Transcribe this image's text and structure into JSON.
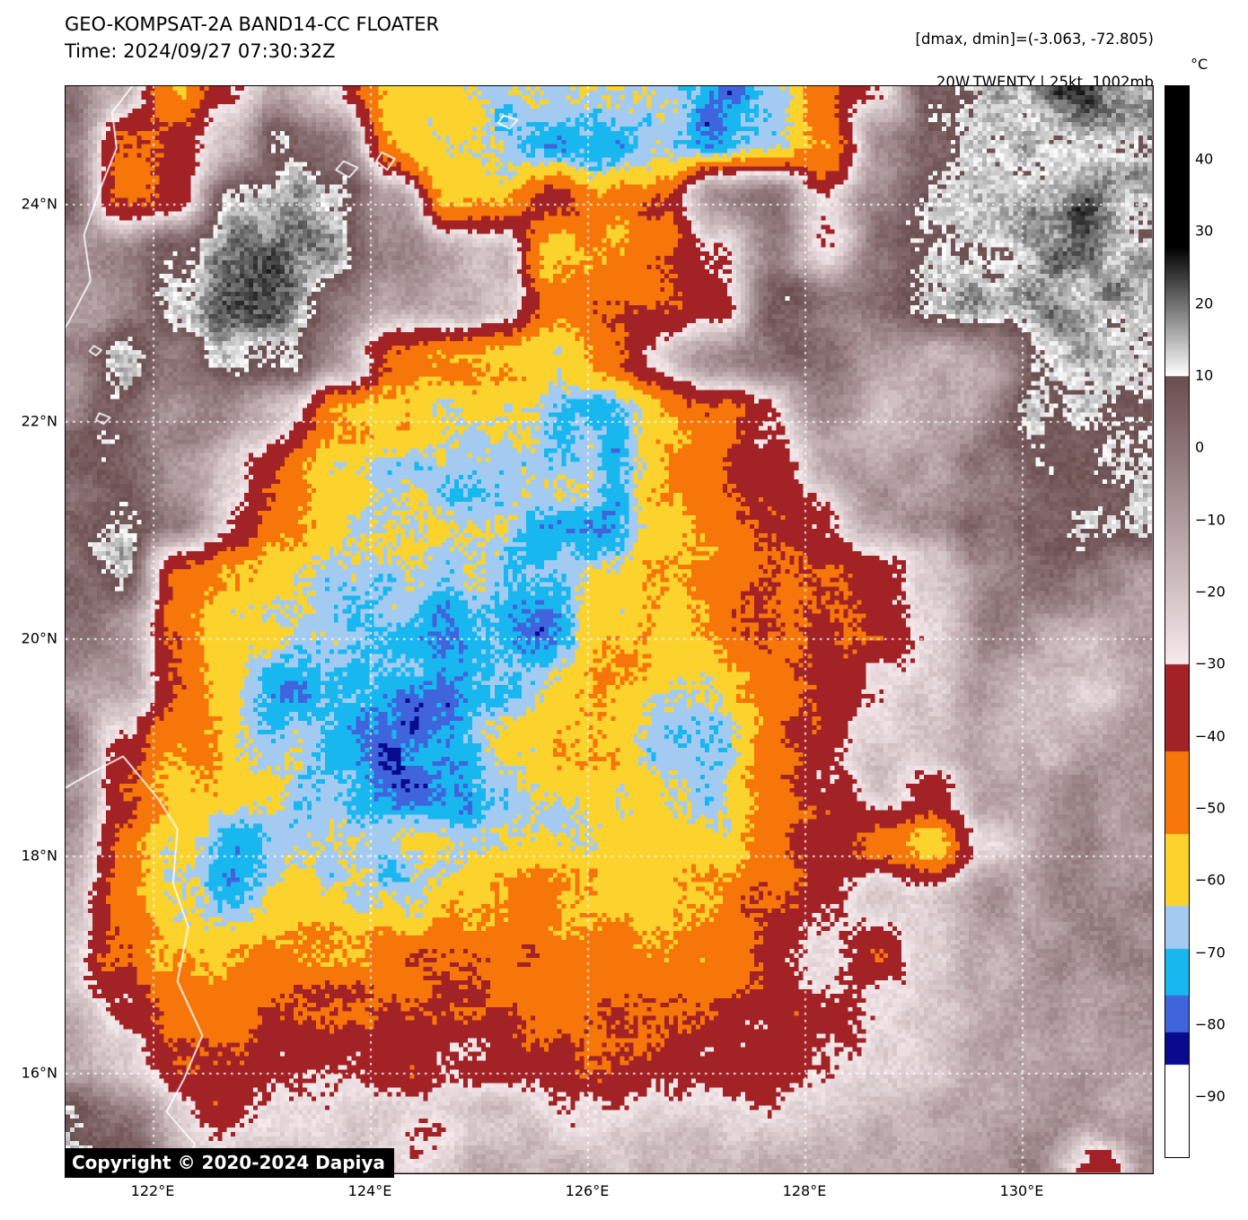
{
  "header": {
    "title": "GEO-KOMPSAT-2A BAND14-CC FLOATER",
    "time": "Time: 2024/09/27 07:30:32Z"
  },
  "annotation": {
    "line1": "[dmax, dmin]=(-3.063, -72.805)",
    "line2": "20W.TWENTY | 25kt, 1002mb"
  },
  "copyright": {
    "text": "Copyright © 2020-2024 Dapiya"
  },
  "colorbar": {
    "unit": "°C",
    "top_value": 50.2,
    "bottom_value": -98.3,
    "ticks": [
      {
        "label": "40",
        "value": 40
      },
      {
        "label": "30",
        "value": 30
      },
      {
        "label": "20",
        "value": 20
      },
      {
        "label": "10",
        "value": 10
      },
      {
        "label": "0",
        "value": 0
      },
      {
        "label": "−10",
        "value": -10
      },
      {
        "label": "−20",
        "value": -20
      },
      {
        "label": "−30",
        "value": -30
      },
      {
        "label": "−40",
        "value": -40
      },
      {
        "label": "−50",
        "value": -50
      },
      {
        "label": "−60",
        "value": -60
      },
      {
        "label": "−70",
        "value": -70
      },
      {
        "label": "−80",
        "value": -80
      },
      {
        "label": "−90",
        "value": -90
      }
    ]
  },
  "palette": {
    "black_above": 28,
    "gray_band": {
      "from": 28,
      "to": 10
    },
    "mauve_band": {
      "from": 10,
      "to": -30,
      "start": "#6B4E50",
      "end": "#F6EAEC"
    },
    "steps": [
      {
        "max": -30,
        "min": -42,
        "color": "#A22226",
        "name": "dark-red"
      },
      {
        "max": -42,
        "min": -53.5,
        "color": "#F6760A",
        "name": "orange"
      },
      {
        "max": -53.5,
        "min": -63.5,
        "color": "#FCD32D",
        "name": "yellow"
      },
      {
        "max": -63.5,
        "min": -69.5,
        "color": "#A3CBF2",
        "name": "light-blue"
      },
      {
        "max": -69.5,
        "min": -76,
        "color": "#18B7F0",
        "name": "cyan"
      },
      {
        "max": -76,
        "min": -81,
        "color": "#3F64DC",
        "name": "royal-blue"
      },
      {
        "max": -81,
        "min": -85.5,
        "color": "#0A0A8F",
        "name": "navy"
      },
      {
        "max": -85.5,
        "min": -110,
        "color": "#FFFFFF",
        "name": "white-cold"
      }
    ]
  },
  "map": {
    "extent": {
      "lon_min": 121.19,
      "lon_max": 131.19,
      "lat_min": 15.09,
      "lat_max": 25.09
    },
    "grid_color": "#ffffff",
    "coast_color": "#ffffff",
    "x_ticks": [
      {
        "label": "122°E",
        "lon": 122
      },
      {
        "label": "124°E",
        "lon": 124
      },
      {
        "label": "126°E",
        "lon": 126
      },
      {
        "label": "128°E",
        "lon": 128
      },
      {
        "label": "130°E",
        "lon": 130
      }
    ],
    "y_ticks": [
      {
        "label": "24°N",
        "lat": 24
      },
      {
        "label": "22°N",
        "lat": 22
      },
      {
        "label": "20°N",
        "lat": 20
      },
      {
        "label": "18°N",
        "lat": 18
      },
      {
        "label": "16°N",
        "lat": 16
      }
    ]
  },
  "imagery": {
    "resolution": 243,
    "grid_cols": 21,
    "grid_rows": 21,
    "lon_start": 121.2,
    "lon_step": 0.5,
    "lat_start": 25.1,
    "lat_step": -0.5,
    "temps": [
      [
        0,
        -15,
        -48,
        -30,
        -18,
        -30,
        -57,
        -60,
        -64,
        -67,
        -71,
        -69,
        -73,
        -65,
        -45,
        -35,
        8,
        14,
        18,
        20,
        20
      ],
      [
        0,
        -45,
        -35,
        -15,
        12,
        -5,
        -52,
        -58,
        -64,
        -70,
        -74,
        -70,
        -77,
        -68,
        -45,
        -5,
        8,
        16,
        18,
        20,
        20
      ],
      [
        2,
        -45,
        -33,
        14,
        18,
        16,
        -8,
        -55,
        -55,
        -38,
        -57,
        -48,
        -5,
        0,
        -30,
        0,
        10,
        16,
        18,
        20,
        20
      ],
      [
        -12,
        -5,
        12,
        20,
        22,
        18,
        -8,
        -12,
        -20,
        -64,
        -57,
        -50,
        -30,
        0,
        -33,
        2,
        8,
        10,
        18,
        20,
        18
      ],
      [
        -8,
        -10,
        14,
        22,
        20,
        -5,
        -10,
        -12,
        -18,
        -52,
        -47,
        -45,
        -35,
        2,
        0,
        5,
        12,
        18,
        22,
        20,
        16
      ],
      [
        -5,
        10,
        -3,
        16,
        12,
        -10,
        -35,
        -50,
        -58,
        -60,
        -45,
        -30,
        -5,
        5,
        2,
        -12,
        -15,
        -10,
        16,
        16,
        14
      ],
      [
        -5,
        8,
        -5,
        -8,
        -30,
        -55,
        -60,
        -63,
        -58,
        -68,
        -70,
        -58,
        -45,
        -30,
        -5,
        -15,
        -18,
        -12,
        12,
        12,
        12
      ],
      [
        5,
        10,
        -8,
        -25,
        -45,
        -58,
        -64,
        -66,
        -62,
        -68,
        -72,
        -58,
        -46,
        -32,
        -12,
        -15,
        -12,
        0,
        10,
        10,
        10
      ],
      [
        8,
        12,
        -5,
        -30,
        -50,
        -60,
        -64,
        -62,
        -64,
        -70,
        -76,
        -60,
        -50,
        -42,
        -30,
        -12,
        -5,
        5,
        10,
        10,
        10
      ],
      [
        3,
        8,
        -45,
        -55,
        -62,
        -64,
        -68,
        -72,
        -66,
        -64,
        -60,
        -55,
        -48,
        -46,
        -46,
        -33,
        -18,
        0,
        8,
        0,
        -10
      ],
      [
        -3,
        -10,
        -47,
        -58,
        -64,
        -66,
        -70,
        -74,
        -68,
        -72,
        -62,
        -55,
        -50,
        -48,
        -42,
        -35,
        -20,
        0,
        -15,
        -20,
        -10
      ],
      [
        -5,
        -12,
        -48,
        -60,
        -75,
        -76,
        -72,
        -70,
        -66,
        -62,
        -58,
        -55,
        -60,
        -50,
        -40,
        -32,
        -25,
        -8,
        -18,
        -22,
        -12
      ],
      [
        5,
        -30,
        -50,
        -62,
        -66,
        -70,
        -80,
        -72,
        -64,
        -60,
        -58,
        -62,
        -66,
        -48,
        -38,
        -25,
        -18,
        -10,
        -20,
        -15,
        -10
      ],
      [
        0,
        -35,
        -55,
        -60,
        -64,
        -68,
        -84,
        -76,
        -66,
        -62,
        -56,
        -60,
        -64,
        -46,
        -36,
        -22,
        -30,
        -8,
        -15,
        -10,
        -8
      ],
      [
        -8,
        -40,
        -62,
        -74,
        -64,
        -64,
        -68,
        -64,
        -60,
        -58,
        -55,
        -58,
        -60,
        -44,
        -33,
        -45,
        -58,
        -25,
        -12,
        -8,
        -6
      ],
      [
        -10,
        -45,
        -64,
        -76,
        -62,
        -60,
        -62,
        -58,
        -56,
        -55,
        -52,
        -55,
        -50,
        -40,
        -30,
        -18,
        -25,
        -8,
        -10,
        -6,
        -5
      ],
      [
        -15,
        -48,
        -57,
        -60,
        -57,
        -55,
        -52,
        -50,
        -48,
        -48,
        -46,
        -48,
        -45,
        -38,
        -28,
        -35,
        -20,
        -12,
        -8,
        -6,
        -5
      ],
      [
        -20,
        -35,
        -46,
        -48,
        -47,
        -46,
        -46,
        -45,
        -44,
        -45,
        -44,
        -42,
        -40,
        -36,
        -34,
        -30,
        -25,
        -15,
        -10,
        -8,
        -6
      ],
      [
        -18,
        -25,
        -36,
        -40,
        -38,
        -36,
        -42,
        -38,
        -36,
        -38,
        -40,
        -36,
        -34,
        -36,
        -30,
        -28,
        -22,
        -15,
        -12,
        -10,
        -8
      ],
      [
        8,
        0,
        -20,
        -33,
        -25,
        -22,
        -25,
        -30,
        -25,
        -28,
        -30,
        -25,
        -22,
        -25,
        -20,
        -18,
        -15,
        -12,
        -10,
        -8,
        -10
      ],
      [
        10,
        5,
        -12,
        -18,
        -15,
        -18,
        -20,
        -22,
        -18,
        -22,
        -25,
        -20,
        -18,
        -15,
        -12,
        -15,
        -12,
        -10,
        -8,
        -40,
        -10
      ]
    ],
    "noise": {
      "low_amp": 6,
      "low_scale": 15,
      "mid_amp": 4.5,
      "mid_scale": 6.5,
      "fine_amp": 3
    }
  },
  "coastlines": {
    "open": [
      [
        [
          121.85,
          25.15
        ],
        [
          121.62,
          24.85
        ],
        [
          121.66,
          24.52
        ],
        [
          121.5,
          24.12
        ],
        [
          121.36,
          23.72
        ],
        [
          121.42,
          23.3
        ],
        [
          121.22,
          22.92
        ],
        [
          121.08,
          22.7
        ]
      ],
      [
        [
          121.05,
          18.55
        ],
        [
          121.45,
          18.78
        ],
        [
          121.72,
          18.92
        ],
        [
          122.05,
          18.52
        ],
        [
          122.22,
          18.25
        ],
        [
          122.18,
          17.75
        ],
        [
          122.32,
          17.35
        ],
        [
          122.22,
          16.85
        ],
        [
          122.45,
          16.35
        ],
        [
          122.28,
          15.95
        ],
        [
          122.12,
          15.65
        ],
        [
          122.38,
          15.35
        ],
        [
          122.28,
          15.05
        ]
      ]
    ],
    "closed": [
      [
        [
          121.45,
          22.7
        ],
        [
          121.52,
          22.66
        ],
        [
          121.47,
          22.61
        ],
        [
          121.41,
          22.65
        ]
      ],
      [
        [
          121.5,
          22.08
        ],
        [
          121.6,
          22.04
        ],
        [
          121.54,
          21.98
        ],
        [
          121.47,
          22.02
        ]
      ],
      [
        [
          125.22,
          24.82
        ],
        [
          125.35,
          24.78
        ],
        [
          125.28,
          24.7
        ],
        [
          125.17,
          24.75
        ]
      ],
      [
        [
          124.1,
          24.48
        ],
        [
          124.22,
          24.42
        ],
        [
          124.15,
          24.32
        ],
        [
          124.05,
          24.4
        ]
      ],
      [
        [
          123.75,
          24.4
        ],
        [
          123.88,
          24.34
        ],
        [
          123.8,
          24.25
        ],
        [
          123.68,
          24.32
        ]
      ]
    ]
  }
}
